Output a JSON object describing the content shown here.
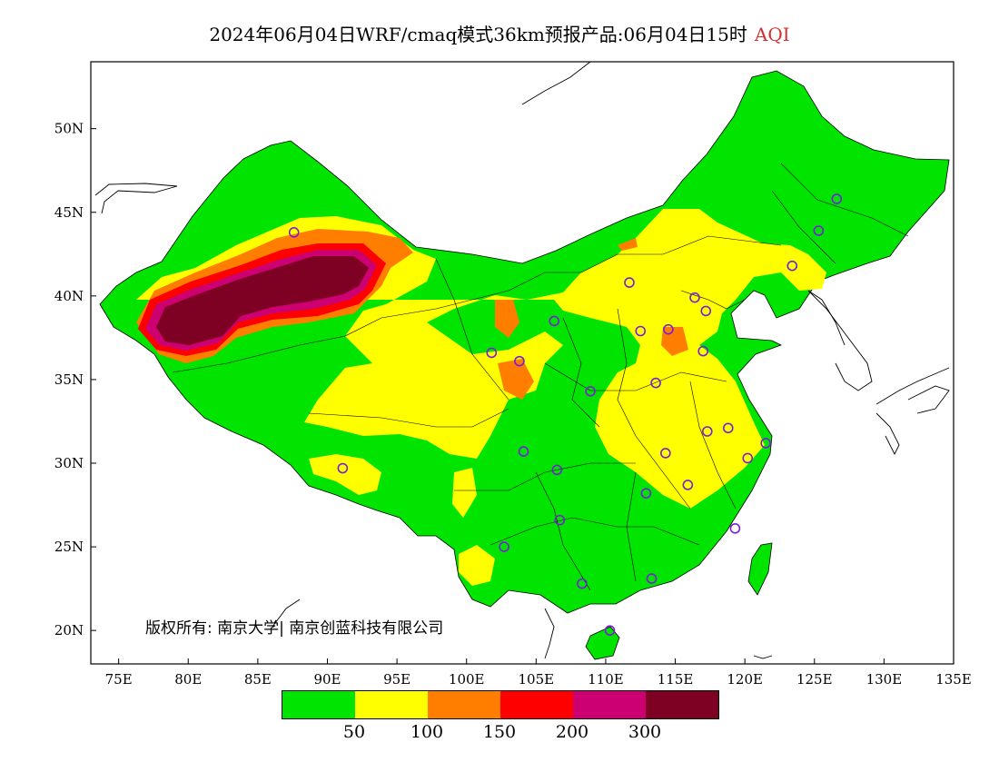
{
  "title": {
    "text": "2024年06月04日WRF/cmaq模式36km预报产品:06月04日15时",
    "variable": "AQI",
    "variable_color": "#d23030"
  },
  "axes": {
    "lon_ticks": [
      "75E",
      "80E",
      "85E",
      "90E",
      "95E",
      "100E",
      "105E",
      "110E",
      "115E",
      "120E",
      "125E",
      "130E",
      "135E"
    ],
    "lat_ticks": [
      "20N",
      "25N",
      "30N",
      "35N",
      "40N",
      "45N",
      "50N"
    ],
    "lon_range": [
      73,
      135
    ],
    "lat_range": [
      18,
      54
    ]
  },
  "copyright": "版权所有: 南京大学| 南京创蓝科技有限公司",
  "legend": {
    "colors": [
      "#00e400",
      "#ffff00",
      "#ff7e00",
      "#ff0000",
      "#cc0070",
      "#7e0023"
    ],
    "labels": [
      "50",
      "100",
      "150",
      "200",
      "300"
    ]
  },
  "stations": [
    {
      "lon": 87.6,
      "lat": 43.8
    },
    {
      "lon": 91.1,
      "lat": 29.7
    },
    {
      "lon": 101.8,
      "lat": 36.6
    },
    {
      "lon": 103.8,
      "lat": 36.1
    },
    {
      "lon": 106.3,
      "lat": 38.5
    },
    {
      "lon": 111.7,
      "lat": 40.8
    },
    {
      "lon": 112.5,
      "lat": 37.9
    },
    {
      "lon": 114.5,
      "lat": 38.0
    },
    {
      "lon": 116.4,
      "lat": 39.9
    },
    {
      "lon": 117.2,
      "lat": 39.1
    },
    {
      "lon": 117.0,
      "lat": 36.7
    },
    {
      "lon": 113.6,
      "lat": 34.8
    },
    {
      "lon": 108.9,
      "lat": 34.3
    },
    {
      "lon": 104.1,
      "lat": 30.7
    },
    {
      "lon": 106.5,
      "lat": 29.6
    },
    {
      "lon": 106.7,
      "lat": 26.6
    },
    {
      "lon": 102.7,
      "lat": 25.0
    },
    {
      "lon": 108.3,
      "lat": 22.8
    },
    {
      "lon": 113.3,
      "lat": 23.1
    },
    {
      "lon": 110.3,
      "lat": 20.0
    },
    {
      "lon": 114.3,
      "lat": 30.6
    },
    {
      "lon": 112.9,
      "lat": 28.2
    },
    {
      "lon": 115.9,
      "lat": 28.7
    },
    {
      "lon": 119.3,
      "lat": 26.1
    },
    {
      "lon": 120.2,
      "lat": 30.3
    },
    {
      "lon": 121.5,
      "lat": 31.2
    },
    {
      "lon": 118.8,
      "lat": 32.1
    },
    {
      "lon": 117.3,
      "lat": 31.9
    },
    {
      "lon": 123.4,
      "lat": 41.8
    },
    {
      "lon": 125.3,
      "lat": 43.9
    },
    {
      "lon": 126.6,
      "lat": 45.8
    }
  ]
}
